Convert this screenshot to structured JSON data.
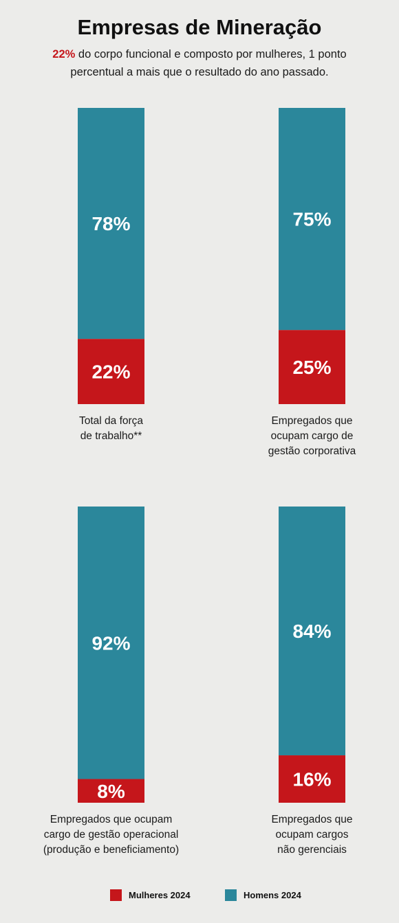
{
  "header": {
    "title": "Empresas de Mineração",
    "subtitle_highlight": "22%",
    "subtitle_rest": " do corpo funcional e composto por mulheres, 1 ponto percentual a mais que o resultado do ano passado."
  },
  "colors": {
    "women": "#c5161b",
    "men": "#2b879b",
    "background": "#ececea"
  },
  "legend": {
    "women_label": "Mulheres 2024",
    "men_label": "Homens 2024"
  },
  "chart_data": [
    {
      "type": "bar",
      "stacked": true,
      "caption": [
        "Total da força",
        "de trabalho**"
      ],
      "series": [
        {
          "name": "Mulheres 2024",
          "value": 22,
          "label": "22%"
        },
        {
          "name": "Homens 2024",
          "value": 78,
          "label": "78%"
        }
      ],
      "ylim": [
        0,
        100
      ]
    },
    {
      "type": "bar",
      "stacked": true,
      "caption": [
        "Empregados que",
        "ocupam cargo de",
        "gestão corporativa"
      ],
      "series": [
        {
          "name": "Mulheres 2024",
          "value": 25,
          "label": "25%"
        },
        {
          "name": "Homens 2024",
          "value": 75,
          "label": "75%"
        }
      ],
      "ylim": [
        0,
        100
      ]
    },
    {
      "type": "bar",
      "stacked": true,
      "caption": [
        "Empregados que ocupam",
        "cargo de gestão operacional",
        "(produção e beneficiamento)"
      ],
      "series": [
        {
          "name": "Mulheres 2024",
          "value": 8,
          "label": "8%"
        },
        {
          "name": "Homens 2024",
          "value": 92,
          "label": "92%"
        }
      ],
      "ylim": [
        0,
        100
      ]
    },
    {
      "type": "bar",
      "stacked": true,
      "caption": [
        "Empregados que",
        "ocupam cargos",
        "não gerenciais"
      ],
      "series": [
        {
          "name": "Mulheres 2024",
          "value": 16,
          "label": "16%"
        },
        {
          "name": "Homens 2024",
          "value": 84,
          "label": "84%"
        }
      ],
      "ylim": [
        0,
        100
      ]
    }
  ]
}
